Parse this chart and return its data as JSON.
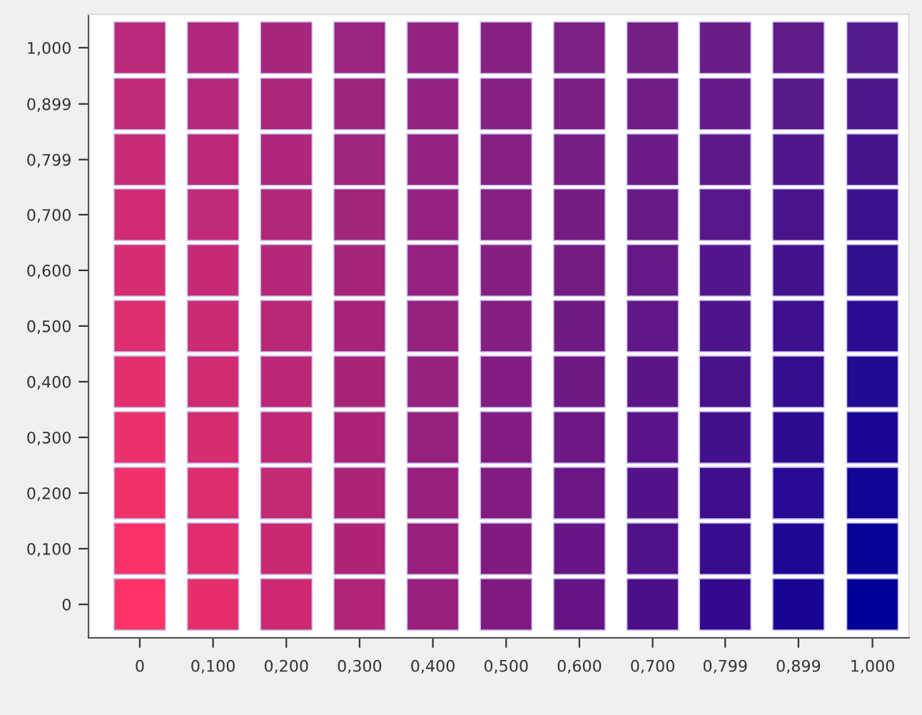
{
  "chart_data": {
    "type": "scatter",
    "marker": "square",
    "grid": false,
    "legend": false,
    "x": [
      0,
      0.1,
      0.2,
      0.3,
      0.4,
      0.5,
      0.6,
      0.7,
      0.799,
      0.899,
      1.0
    ],
    "xlim": [
      -0.07,
      1.05
    ],
    "ylim": [
      -0.06,
      1.06
    ],
    "xticks": [
      0,
      {
        "value": 0.1,
        "label": "0,100"
      },
      {
        "value": 0.2,
        "label": "0,200"
      },
      {
        "value": 0.3,
        "label": "0,300"
      },
      {
        "value": 0.4,
        "label": "0,400"
      },
      {
        "value": 0.5,
        "label": "0,500"
      },
      {
        "value": 0.6,
        "label": "0,600"
      },
      {
        "value": 0.7,
        "label": "0,700"
      },
      {
        "value": 0.799,
        "label": "0,799"
      },
      {
        "value": 0.899,
        "label": "0,899"
      },
      {
        "value": 1.0,
        "label": "1,000"
      }
    ],
    "yticks": [
      0,
      {
        "value": 0.1,
        "label": "0,100"
      },
      {
        "value": 0.2,
        "label": "0,200"
      },
      {
        "value": 0.3,
        "label": "0,300"
      },
      {
        "value": 0.4,
        "label": "0,400"
      },
      {
        "value": 0.5,
        "label": "0,500"
      },
      {
        "value": 0.6,
        "label": "0,600"
      },
      {
        "value": 0.7,
        "label": "0,700"
      },
      {
        "value": 0.799,
        "label": "0,799"
      },
      {
        "value": 0.899,
        "label": "0,899"
      },
      {
        "value": 1.0,
        "label": "1,000"
      }
    ],
    "series": [
      {
        "values": [
          0,
          0,
          0,
          0,
          0,
          0,
          0,
          0,
          0,
          0,
          0
        ],
        "colors": [
          "#ff3366",
          "#e62e6b",
          "#cc2970",
          "#b22475",
          "#991f7a",
          "#801a80",
          "#661485",
          "#4c0f8a",
          "#330a8f",
          "#190594",
          "#000099"
        ]
      },
      {
        "values": [
          0.1,
          0.1,
          0.1,
          0.1,
          0.1,
          0.1,
          0.1,
          0.1,
          0.1,
          0.1,
          0.1
        ],
        "colors": [
          "#f83268",
          "#e12d6d",
          "#c82971",
          "#b02476",
          "#981f7b",
          "#811b80",
          "#681585",
          "#501189",
          "#380c8e",
          "#200793",
          "#080397"
        ]
      },
      {
        "values": [
          0.2,
          0.2,
          0.2,
          0.2,
          0.2,
          0.2,
          0.2,
          0.2,
          0.2,
          0.2,
          0.2
        ],
        "colors": [
          "#f1316a",
          "#db2d6e",
          "#c42973",
          "#ae2477",
          "#98207b",
          "#821c80",
          "#6b1685",
          "#541289",
          "#3e0e8d",
          "#270992",
          "#110596"
        ]
      },
      {
        "values": [
          0.3,
          0.3,
          0.3,
          0.3,
          0.3,
          0.3,
          0.3,
          0.3,
          0.3,
          0.3,
          0.3
        ],
        "colors": [
          "#eb306c",
          "#d62c70",
          "#c12874",
          "#ab2478",
          "#97207c",
          "#821c81",
          "#6d1884",
          "#581488",
          "#43108d",
          "#2e0c90",
          "#190894"
        ]
      },
      {
        "values": [
          0.4,
          0.4,
          0.4,
          0.4,
          0.4,
          0.4,
          0.4,
          0.4,
          0.4,
          0.4,
          0.4
        ],
        "colors": [
          "#e42f6e",
          "#d02c71",
          "#bd2876",
          "#a92479",
          "#97217c",
          "#831d81",
          "#701984",
          "#5c1587",
          "#49128c",
          "#350e8f",
          "#220a92"
        ]
      },
      {
        "values": [
          0.5,
          0.5,
          0.5,
          0.5,
          0.5,
          0.5,
          0.5,
          0.5,
          0.5,
          0.5,
          0.5
        ],
        "colors": [
          "#dd2e70",
          "#cb2b73",
          "#b92877",
          "#a7247a",
          "#96217d",
          "#841e81",
          "#721a84",
          "#601787",
          "#4e148b",
          "#3c108e",
          "#2a0d91"
        ]
      },
      {
        "values": [
          0.6,
          0.6,
          0.6,
          0.6,
          0.6,
          0.6,
          0.6,
          0.6,
          0.6,
          0.6,
          0.6
        ],
        "colors": [
          "#d62d72",
          "#c62a75",
          "#b52878",
          "#a5247b",
          "#95227e",
          "#851f81",
          "#741b84",
          "#641987",
          "#53168a",
          "#43128d",
          "#331090"
        ]
      },
      {
        "values": [
          0.7,
          0.7,
          0.7,
          0.7,
          0.7,
          0.7,
          0.7,
          0.7,
          0.7,
          0.7,
          0.7
        ],
        "colors": [
          "#cf2c74",
          "#c12a77",
          "#b22879",
          "#a2257c",
          "#94227e",
          "#862081",
          "#771c84",
          "#681a86",
          "#591889",
          "#4a158b",
          "#3b128e"
        ]
      },
      {
        "values": [
          0.799,
          0.799,
          0.799,
          0.799,
          0.799,
          0.799,
          0.799,
          0.799,
          0.799,
          0.799,
          0.799
        ],
        "colors": [
          "#c82c76",
          "#bb2978",
          "#ae277a",
          "#a0257d",
          "#94237f",
          "#862082",
          "#791e84",
          "#6c1c86",
          "#5e1988",
          "#51178a",
          "#44158d"
        ]
      },
      {
        "values": [
          0.899,
          0.899,
          0.899,
          0.899,
          0.899,
          0.899,
          0.899,
          0.899,
          0.899,
          0.899,
          0.899
        ],
        "colors": [
          "#c22b78",
          "#b6297a",
          "#ab277c",
          "#9e257e",
          "#93237f",
          "#872182",
          "#7c1f84",
          "#701d85",
          "#641b88",
          "#581a89",
          "#4c178b"
        ]
      },
      {
        "values": [
          1.0,
          1.0,
          1.0,
          1.0,
          1.0,
          1.0,
          1.0,
          1.0,
          1.0,
          1.0,
          1.0
        ],
        "colors": [
          "#bb2a7a",
          "#b1287c",
          "#a7277d",
          "#9c257f",
          "#922480",
          "#882282",
          "#7e2084",
          "#741f85",
          "#691d87",
          "#5f1c88",
          "#551a8a"
        ]
      }
    ]
  }
}
